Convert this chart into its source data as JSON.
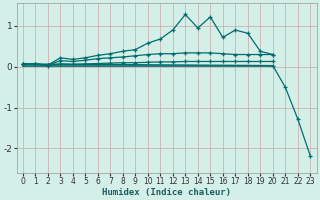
{
  "bg_color": "#d4eee8",
  "grid_color": "#c8a8a8",
  "line_color": "#006e6e",
  "xlabel": "Humidex (Indice chaleur)",
  "xlim": [
    -0.5,
    23.5
  ],
  "ylim": [
    -2.6,
    1.55
  ],
  "yticks": [
    -2,
    -1,
    0,
    1
  ],
  "xticks": [
    0,
    1,
    2,
    3,
    4,
    5,
    6,
    7,
    8,
    9,
    10,
    11,
    12,
    13,
    14,
    15,
    16,
    17,
    18,
    19,
    20,
    21,
    22,
    23
  ],
  "line1_x": [
    0,
    1,
    2,
    3,
    4,
    5,
    6,
    7,
    8,
    9,
    10,
    11,
    12,
    13,
    14,
    15,
    16,
    17,
    18,
    19,
    20
  ],
  "line1_y": [
    0.07,
    0.07,
    0.04,
    0.22,
    0.18,
    0.22,
    0.28,
    0.32,
    0.38,
    0.42,
    0.58,
    0.68,
    0.9,
    1.28,
    0.95,
    1.22,
    0.72,
    0.9,
    0.82,
    0.38,
    0.3
  ],
  "line2_x": [
    0,
    1,
    2,
    3,
    4,
    5,
    6,
    7,
    8,
    9,
    10,
    11,
    12,
    13,
    14,
    15,
    16,
    17,
    18,
    19,
    20
  ],
  "line2_y": [
    0.07,
    0.07,
    0.04,
    0.15,
    0.13,
    0.16,
    0.2,
    0.22,
    0.24,
    0.27,
    0.3,
    0.32,
    0.32,
    0.34,
    0.34,
    0.34,
    0.32,
    0.3,
    0.3,
    0.3,
    0.3
  ],
  "line3_x": [
    0,
    1,
    2,
    3,
    4,
    5,
    6,
    7,
    8,
    9,
    10,
    11,
    12,
    13,
    14,
    15,
    16,
    17,
    18,
    19,
    20
  ],
  "line3_y": [
    0.07,
    0.07,
    0.03,
    0.07,
    0.06,
    0.07,
    0.08,
    0.09,
    0.1,
    0.1,
    0.11,
    0.12,
    0.12,
    0.13,
    0.13,
    0.13,
    0.13,
    0.13,
    0.13,
    0.13,
    0.13
  ],
  "line4_x": [
    0,
    20,
    21,
    22,
    23
  ],
  "line4_y": [
    0.07,
    0.03,
    -0.5,
    -1.28,
    -2.18
  ],
  "hline_x": [
    0,
    20
  ],
  "hline_y": [
    0.03,
    0.03
  ]
}
